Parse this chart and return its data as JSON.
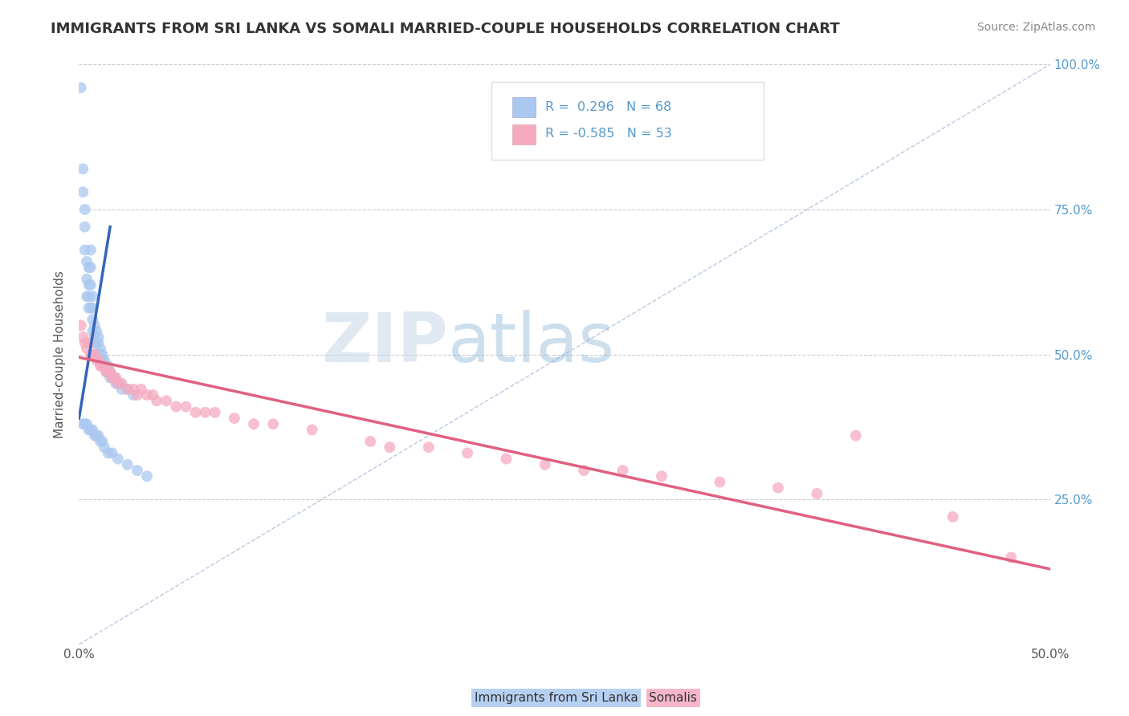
{
  "title": "IMMIGRANTS FROM SRI LANKA VS SOMALI MARRIED-COUPLE HOUSEHOLDS CORRELATION CHART",
  "source": "Source: ZipAtlas.com",
  "ylabel": "Married-couple Households",
  "xlim": [
    0,
    0.5
  ],
  "ylim": [
    0,
    1.0
  ],
  "xtick_vals": [
    0.0,
    0.05,
    0.1,
    0.15,
    0.2,
    0.25,
    0.3,
    0.35,
    0.4,
    0.45,
    0.5
  ],
  "xtick_labels": [
    "0.0%",
    "",
    "",
    "",
    "",
    "",
    "",
    "",
    "",
    "",
    "50.0%"
  ],
  "ytick_vals": [
    0.0,
    0.25,
    0.5,
    0.75,
    1.0
  ],
  "ytick_labels_right": [
    "",
    "25.0%",
    "50.0%",
    "75.0%",
    "100.0%"
  ],
  "legend1_r": "0.296",
  "legend1_n": "68",
  "legend2_r": "-0.585",
  "legend2_n": "53",
  "legend_label1": "Immigrants from Sri Lanka",
  "legend_label2": "Somalis",
  "sri_lanka_color": "#aac8f0",
  "somali_color": "#f5aac0",
  "sri_lanka_line_color": "#3366bb",
  "somali_line_color": "#e06080",
  "ref_line_color": "#aabbdd",
  "background_color": "#ffffff",
  "grid_color": "#cccccc",
  "watermark_text": "ZIPatlas",
  "title_color": "#333333",
  "title_fontsize": 13,
  "source_fontsize": 10,
  "tick_color_right": "#5599cc",
  "sri_lanka_x": [
    0.001,
    0.002,
    0.002,
    0.003,
    0.003,
    0.003,
    0.004,
    0.004,
    0.004,
    0.005,
    0.005,
    0.005,
    0.005,
    0.006,
    0.006,
    0.006,
    0.006,
    0.007,
    0.007,
    0.007,
    0.007,
    0.008,
    0.008,
    0.008,
    0.009,
    0.009,
    0.009,
    0.01,
    0.01,
    0.01,
    0.011,
    0.011,
    0.012,
    0.012,
    0.013,
    0.013,
    0.014,
    0.014,
    0.015,
    0.015,
    0.016,
    0.016,
    0.017,
    0.018,
    0.019,
    0.02,
    0.021,
    0.022,
    0.025,
    0.028,
    0.002,
    0.003,
    0.004,
    0.005,
    0.006,
    0.007,
    0.008,
    0.009,
    0.01,
    0.011,
    0.012,
    0.013,
    0.015,
    0.017,
    0.02,
    0.025,
    0.03,
    0.035
  ],
  "sri_lanka_y": [
    0.96,
    0.82,
    0.78,
    0.75,
    0.72,
    0.68,
    0.66,
    0.63,
    0.6,
    0.65,
    0.62,
    0.6,
    0.58,
    0.68,
    0.65,
    0.62,
    0.58,
    0.6,
    0.58,
    0.56,
    0.54,
    0.55,
    0.53,
    0.52,
    0.54,
    0.52,
    0.5,
    0.53,
    0.52,
    0.5,
    0.51,
    0.5,
    0.5,
    0.49,
    0.49,
    0.48,
    0.48,
    0.47,
    0.48,
    0.47,
    0.47,
    0.46,
    0.46,
    0.46,
    0.45,
    0.45,
    0.45,
    0.44,
    0.44,
    0.43,
    0.38,
    0.38,
    0.38,
    0.37,
    0.37,
    0.37,
    0.36,
    0.36,
    0.36,
    0.35,
    0.35,
    0.34,
    0.33,
    0.33,
    0.32,
    0.31,
    0.3,
    0.29
  ],
  "somali_x": [
    0.001,
    0.002,
    0.003,
    0.004,
    0.005,
    0.006,
    0.007,
    0.008,
    0.009,
    0.01,
    0.011,
    0.012,
    0.013,
    0.014,
    0.015,
    0.016,
    0.017,
    0.018,
    0.019,
    0.02,
    0.022,
    0.025,
    0.028,
    0.03,
    0.032,
    0.035,
    0.038,
    0.04,
    0.045,
    0.05,
    0.055,
    0.06,
    0.065,
    0.07,
    0.08,
    0.09,
    0.1,
    0.12,
    0.15,
    0.16,
    0.18,
    0.2,
    0.22,
    0.24,
    0.26,
    0.28,
    0.3,
    0.33,
    0.36,
    0.38,
    0.4,
    0.45,
    0.48
  ],
  "somali_y": [
    0.55,
    0.53,
    0.52,
    0.51,
    0.52,
    0.5,
    0.5,
    0.5,
    0.49,
    0.49,
    0.48,
    0.48,
    0.48,
    0.47,
    0.47,
    0.47,
    0.46,
    0.46,
    0.46,
    0.45,
    0.45,
    0.44,
    0.44,
    0.43,
    0.44,
    0.43,
    0.43,
    0.42,
    0.42,
    0.41,
    0.41,
    0.4,
    0.4,
    0.4,
    0.39,
    0.38,
    0.38,
    0.37,
    0.35,
    0.34,
    0.34,
    0.33,
    0.32,
    0.31,
    0.3,
    0.3,
    0.29,
    0.28,
    0.27,
    0.26,
    0.36,
    0.22,
    0.15
  ],
  "sri_line_x0": 0.0,
  "sri_line_y0": 0.39,
  "sri_line_x1": 0.016,
  "sri_line_y1": 0.72,
  "som_line_x0": 0.0,
  "som_line_y0": 0.495,
  "som_line_x1": 0.5,
  "som_line_y1": 0.13,
  "ref_line_x0": 0.0,
  "ref_line_y0": 0.0,
  "ref_line_x1": 0.5,
  "ref_line_y1": 1.0
}
